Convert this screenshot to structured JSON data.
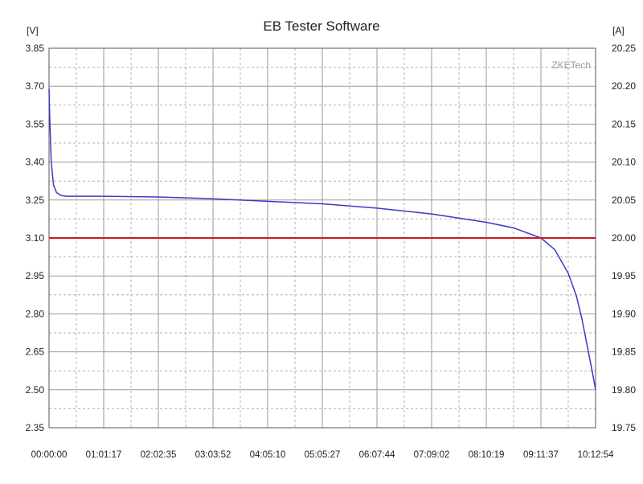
{
  "chart_data": {
    "type": "line",
    "title": "EB Tester Software",
    "watermark": "ZKETech",
    "y_left": {
      "unit": "[V]",
      "ylim": [
        2.35,
        3.85
      ],
      "ticks": [
        "3.85",
        "3.70",
        "3.55",
        "3.40",
        "3.25",
        "3.10",
        "2.95",
        "2.80",
        "2.65",
        "2.50",
        "2.35"
      ]
    },
    "y_right": {
      "unit": "[A]",
      "ylim": [
        19.75,
        20.25
      ],
      "ticks": [
        "20.25",
        "20.20",
        "20.15",
        "20.10",
        "20.05",
        "20.00",
        "19.95",
        "19.90",
        "19.85",
        "19.80",
        "19.75"
      ]
    },
    "x_ticks": [
      "00:00:00",
      "01:01:17",
      "02:02:35",
      "03:03:52",
      "04:05:10",
      "05:05:27",
      "06:07:44",
      "07:09:02",
      "08:10:19",
      "09:11:37",
      "10:12:54"
    ],
    "xlim_seconds": [
      0,
      36774
    ],
    "grid": true,
    "series": [
      {
        "color": "#3a3ac8",
        "axis": "left",
        "x": [
          0,
          60,
          150,
          300,
          500,
          800,
          1200,
          2000,
          3677,
          7355,
          11032,
          14710,
          18387,
          22064,
          25742,
          29419,
          31258,
          33097,
          34016,
          34936,
          35488,
          35855,
          36223,
          36590,
          36774
        ],
        "y": [
          3.69,
          3.55,
          3.4,
          3.31,
          3.28,
          3.268,
          3.265,
          3.265,
          3.265,
          3.262,
          3.255,
          3.245,
          3.235,
          3.218,
          3.195,
          3.162,
          3.14,
          3.1,
          3.055,
          2.96,
          2.87,
          2.78,
          2.67,
          2.56,
          2.5
        ]
      },
      {
        "color": "#cc1a1a",
        "axis": "right",
        "x": [
          0,
          36774
        ],
        "y": [
          20.0,
          20.0
        ]
      }
    ]
  }
}
